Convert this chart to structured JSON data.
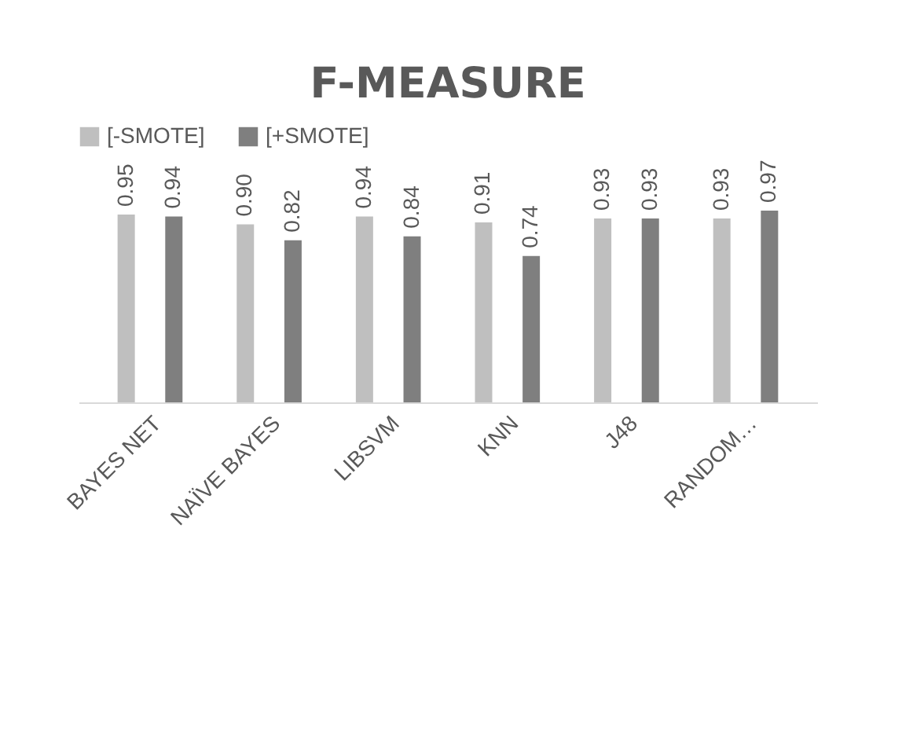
{
  "chart_data": {
    "type": "bar",
    "title": "F-MEASURE",
    "categories": [
      "BAYES NET",
      "NAÏVE BAYES",
      "LIBSVM",
      "KNN",
      "J48",
      "RANDOM…"
    ],
    "series": [
      {
        "name": "[-SMOTE]",
        "color": "#bfbfbf",
        "values": [
          0.95,
          0.9,
          0.94,
          0.91,
          0.93,
          0.93
        ],
        "value_labels": [
          "0.95",
          "0.90",
          "0.94",
          "0.91",
          "0.93",
          "0.93"
        ]
      },
      {
        "name": "[+SMOTE]",
        "color": "#7f7f7f",
        "values": [
          0.94,
          0.82,
          0.84,
          0.74,
          0.93,
          0.97
        ],
        "value_labels": [
          "0.94",
          "0.82",
          "0.84",
          "0.74",
          "0.93",
          "0.97"
        ]
      }
    ],
    "legend": "top"
  }
}
